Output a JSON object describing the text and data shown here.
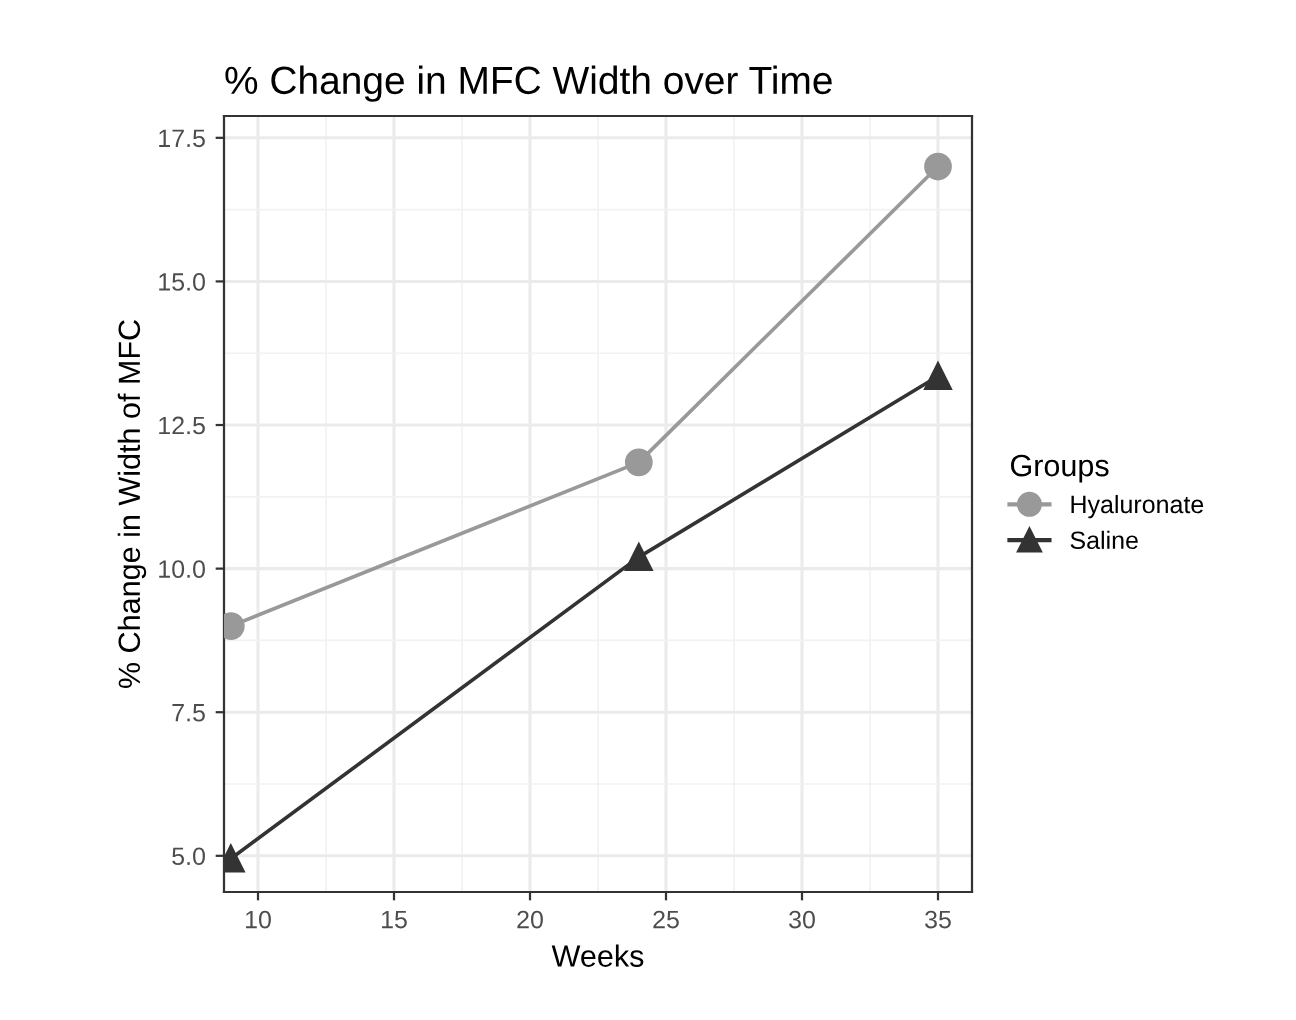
{
  "chart_data": {
    "type": "line",
    "title": "% Change in MFC Width over Time",
    "xlabel": "Weeks",
    "ylabel": "% Change in Width of MFC",
    "legend_title": "Groups",
    "x": [
      9,
      24,
      35
    ],
    "series": [
      {
        "name": "Hyaluronate",
        "color": "#999999",
        "marker": "circle",
        "values": [
          9.0,
          11.85,
          17.0
        ]
      },
      {
        "name": "Saline",
        "color": "#333333",
        "marker": "triangle",
        "values": [
          4.95,
          10.2,
          13.35
        ]
      }
    ],
    "xlim": [
      8.75,
      36.25
    ],
    "ylim": [
      4.37,
      17.88
    ],
    "xticks": [
      10,
      15,
      20,
      25,
      30,
      35
    ],
    "yticks": [
      {
        "value": 5,
        "label": "5.0"
      },
      7.5,
      {
        "value": 10,
        "label": "10.0"
      },
      12.5,
      {
        "value": 15,
        "label": "15.0"
      },
      17.5
    ],
    "grid": true,
    "legend": "right"
  }
}
